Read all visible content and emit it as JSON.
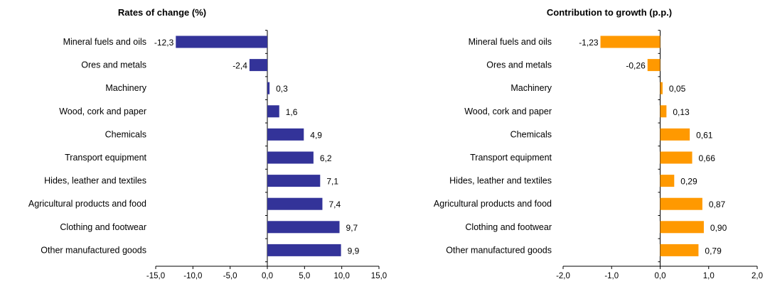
{
  "chart_data": [
    {
      "type": "bar",
      "orientation": "horizontal",
      "title": "Rates of change  (%)",
      "categories": [
        "Mineral fuels and oils",
        "Ores and metals",
        "Machinery",
        "Wood, cork and paper",
        "Chemicals",
        "Transport equipment",
        "Hides, leather and textiles",
        "Agricultural products and food",
        "Clothing and footwear",
        "Other manufactured goods"
      ],
      "values": [
        -12.3,
        -2.4,
        0.3,
        1.6,
        4.9,
        6.2,
        7.1,
        7.4,
        9.7,
        9.9
      ],
      "value_labels": [
        "-12,3",
        "-2,4",
        "0,3",
        "1,6",
        "4,9",
        "6,2",
        "7,1",
        "7,4",
        "9,7",
        "9,9"
      ],
      "xlim": [
        -15,
        15
      ],
      "xticks": [
        -15,
        -10,
        -5,
        0,
        5,
        10,
        15
      ],
      "xtick_labels": [
        "-15,0",
        "-10,0",
        "-5,0",
        "0,0",
        "5,0",
        "10,0",
        "15,0"
      ],
      "color": "#333399",
      "grid": false
    },
    {
      "type": "bar",
      "orientation": "horizontal",
      "title": "Contribution to growth (p.p.)",
      "categories": [
        "Mineral fuels and oils",
        "Ores and metals",
        "Machinery",
        "Wood, cork and paper",
        "Chemicals",
        "Transport equipment",
        "Hides, leather and textiles",
        "Agricultural products and food",
        "Clothing and footwear",
        "Other manufactured goods"
      ],
      "values": [
        -1.23,
        -0.26,
        0.05,
        0.13,
        0.61,
        0.66,
        0.29,
        0.87,
        0.9,
        0.79
      ],
      "value_labels": [
        "-1,23",
        "-0,26",
        "0,05",
        "0,13",
        "0,61",
        "0,66",
        "0,29",
        "0,87",
        "0,90",
        "0,79"
      ],
      "xlim": [
        -2,
        2
      ],
      "xticks": [
        -2,
        -1,
        0,
        1,
        2
      ],
      "xtick_labels": [
        "-2,0",
        "-1,0",
        "0,0",
        "1,0",
        "2,0"
      ],
      "color": "#FF9900",
      "grid": false
    }
  ]
}
